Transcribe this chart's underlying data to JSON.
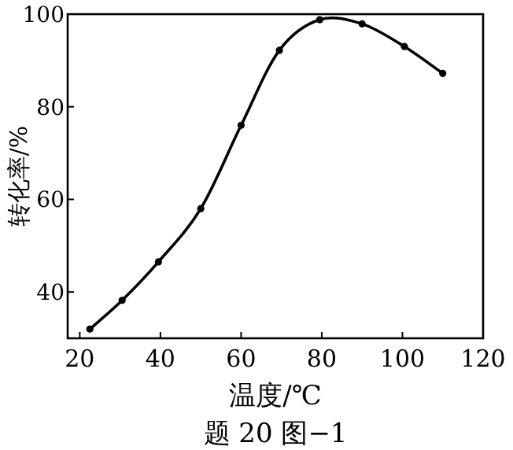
{
  "chart_data": {
    "type": "line",
    "xlabel": "温度/℃",
    "ylabel": "转化率/%",
    "annotations": [
      "题 20 图−1"
    ],
    "xlim": [
      17,
      120
    ],
    "ylim": [
      30,
      100
    ],
    "xticks": [
      20,
      40,
      60,
      80,
      100,
      120
    ],
    "yticks": [
      40,
      60,
      80,
      100
    ],
    "marker": "circle",
    "line_style": "solid",
    "grid": false,
    "series": [
      {
        "color": "#000000",
        "x": [
          22.5,
          30.5,
          39.5,
          50,
          60,
          69.5,
          79.5,
          90,
          100.5,
          110
        ],
        "values": [
          32,
          38.2,
          46.5,
          58,
          76,
          92.2,
          98.8,
          97.9,
          93,
          87.2
        ]
      }
    ]
  }
}
